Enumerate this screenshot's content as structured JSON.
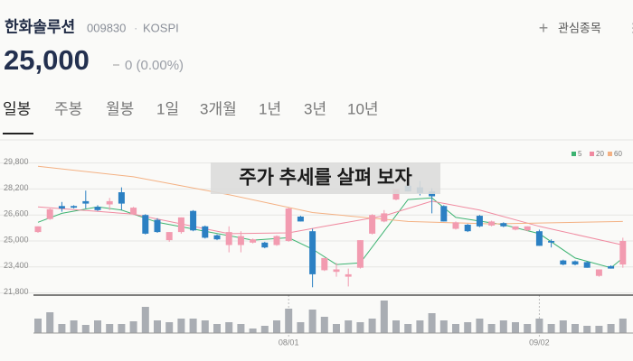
{
  "header": {
    "name": "한화솔루션",
    "code": "009830",
    "market": "KOSPI",
    "watch": "관심종목",
    "price": "25,000",
    "change": "0 (0.00%)"
  },
  "tabs": [
    "일봉",
    "주봉",
    "월봉",
    "1일",
    "3개월",
    "1년",
    "3년",
    "10년"
  ],
  "banner": "주가 추세를 살펴 보자",
  "chart_data": {
    "type": "candlestick",
    "categories": [
      null,
      null,
      null,
      null,
      null,
      null,
      null,
      null,
      null,
      null,
      null,
      null,
      null,
      null,
      null,
      null,
      null,
      null,
      null,
      null,
      null,
      "08/01",
      null,
      null,
      null,
      null,
      null,
      null,
      null,
      null,
      null,
      null,
      null,
      null,
      null,
      null,
      null,
      null,
      null,
      null,
      null,
      null,
      "09/02",
      null,
      null,
      null,
      null,
      null,
      null,
      null
    ],
    "open": [
      25550,
      26350,
      27150,
      27150,
      27450,
      27100,
      27250,
      28000,
      26650,
      26600,
      26300,
      25050,
      25550,
      26850,
      25900,
      25350,
      24750,
      24750,
      24900,
      24900,
      24750,
      25000,
      26500,
      25600,
      23200,
      23100,
      22800,
      23350,
      25450,
      26200,
      27550,
      28400,
      28300,
      28050,
      27150,
      25750,
      26000,
      26550,
      25950,
      26100,
      25700,
      25650,
      25600,
      25000,
      23800,
      23750,
      23700,
      22850,
      23450,
      23550
    ],
    "high": [
      25900,
      27000,
      27400,
      27200,
      28100,
      27200,
      27650,
      28300,
      27100,
      26650,
      26400,
      25550,
      26450,
      26900,
      25950,
      25400,
      25900,
      25600,
      25150,
      24950,
      25350,
      27050,
      26550,
      25750,
      23950,
      23650,
      23300,
      25050,
      26650,
      26900,
      28200,
      28450,
      28700,
      28250,
      27200,
      26200,
      26050,
      26600,
      26250,
      26150,
      25900,
      25900,
      25700,
      25100,
      23850,
      23800,
      23750,
      23250,
      23500,
      25200
    ],
    "low": [
      25500,
      26300,
      26800,
      27000,
      27000,
      26850,
      26900,
      26900,
      26600,
      25400,
      25500,
      24950,
      25450,
      25600,
      25150,
      25050,
      24300,
      24300,
      24850,
      24550,
      24700,
      24950,
      26200,
      22150,
      23150,
      22800,
      22200,
      23300,
      25400,
      26150,
      27500,
      28050,
      27800,
      26700,
      26200,
      25700,
      25550,
      25850,
      25900,
      25850,
      25650,
      25600,
      24700,
      24600,
      23500,
      23500,
      23350,
      22800,
      23300,
      23350
    ],
    "close": [
      25900,
      26950,
      27000,
      27050,
      27300,
      26900,
      27450,
      27300,
      27050,
      25450,
      25550,
      25550,
      26450,
      25650,
      25200,
      25100,
      25550,
      25300,
      25100,
      24600,
      25300,
      27000,
      26200,
      22950,
      23950,
      23250,
      22950,
      25050,
      26600,
      26700,
      28200,
      28050,
      27950,
      27750,
      26200,
      26150,
      25600,
      25900,
      26200,
      25900,
      25900,
      25900,
      24700,
      24900,
      23550,
      23550,
      23350,
      23250,
      23300,
      25000
    ],
    "up_color": "#f29bb0",
    "down_color": "#2b80c3",
    "volume": [
      16,
      23,
      10,
      14,
      9,
      14,
      10,
      10,
      13,
      29,
      14,
      12,
      16,
      16,
      14,
      10,
      12,
      10,
      5,
      8,
      14,
      27,
      12,
      26,
      18,
      10,
      14,
      12,
      16,
      36,
      14,
      10,
      14,
      22,
      14,
      10,
      12,
      16,
      10,
      14,
      12,
      10,
      16,
      10,
      14,
      10,
      8,
      8,
      10,
      16
    ],
    "volume_lim": [
      0,
      40
    ],
    "volume_color": "#a9adb3",
    "ylim": [
      21500,
      31500
    ],
    "yticks": [
      {
        "value": 29800,
        "label": "29,800"
      },
      {
        "value": 28200,
        "label": "28,200"
      },
      {
        "value": 26600,
        "label": "26,600"
      },
      {
        "value": 25000,
        "label": "25,000"
      },
      {
        "value": 23400,
        "label": "23,400"
      },
      {
        "value": 21800,
        "label": "21,800"
      }
    ],
    "grid": true,
    "series": [
      {
        "name": "5",
        "color": "#3cb371",
        "x": [
          0,
          2,
          5,
          7,
          10,
          14,
          18,
          21,
          23,
          25,
          27,
          29,
          31,
          33,
          35,
          39,
          42,
          45,
          48,
          49
        ],
        "values": [
          26150,
          26700,
          27100,
          26900,
          26150,
          25600,
          25050,
          25200,
          24500,
          23550,
          23650,
          25600,
          27550,
          27650,
          26450,
          26000,
          25450,
          23950,
          23350,
          23950
        ]
      },
      {
        "name": "20",
        "color": "#f08aa0",
        "x": [
          0,
          8,
          16,
          21,
          24,
          29,
          33,
          37,
          42,
          49
        ],
        "values": [
          27100,
          26650,
          25450,
          25500,
          25900,
          26550,
          27450,
          26900,
          25900,
          24750
        ]
      },
      {
        "name": "60",
        "color": "#f4b183",
        "x": [
          0,
          8,
          16,
          23,
          31,
          38,
          49
        ],
        "values": [
          29600,
          28950,
          27850,
          26750,
          26200,
          26050,
          26200
        ]
      }
    ]
  }
}
